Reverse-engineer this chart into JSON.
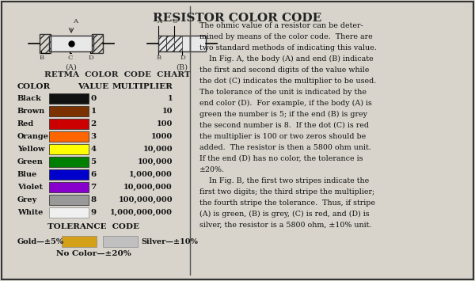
{
  "title": "RESISTOR COLOR CODE",
  "bg_color": "#d8d4cc",
  "border_color": "#333333",
  "colors": [
    "Black",
    "Brown",
    "Red",
    "Orange",
    "Yellow",
    "Green",
    "Blue",
    "Violet",
    "Grey",
    "White"
  ],
  "color_hex": [
    "#111111",
    "#7B3200",
    "#CC0000",
    "#FF6600",
    "#FFFF00",
    "#008000",
    "#0000CC",
    "#8800CC",
    "#999999",
    "#FFFFFF"
  ],
  "values": [
    "0",
    "1",
    "2",
    "3",
    "4",
    "5",
    "6",
    "7",
    "8",
    "9"
  ],
  "multipliers": [
    "1",
    "10",
    "100",
    "1000",
    "10,000",
    "100,000",
    "1,000,000",
    "10,000,000",
    "100,000,000",
    "1,000,000,000"
  ],
  "tolerance_gold_color": "#D4A017",
  "tolerance_silver_color": "#C0C0C0",
  "right_text": "The ohmic value of a resistor can be determined by means of the color code.  There are two standard methods of indicating this value.\n    In Fig. A, the body (A) and end (B) indicate the first and second digits of the value while the dot (C) indicates the multiplier to be used. The tolerance of the unit is indicated by the end color (D).  For example, if the body (A) is green the number is 5; if the end (B) is grey the second number is 8.  If the dot (C) is red the multiplier is 100 or two zeros should be added.  The resistor is then a 5800 ohm unit. If the end (D) has no color, the tolerance is ±20%.\n    In Fig. B, the first two stripes indicate the first two digits; the third stripe the multiplier; the fourth stripe the tolerance.  Thus, if stripe (A) is green, (B) is grey, (C) is red, and (D) is silver, the resistor is a 5800 ohm, ±10% unit."
}
